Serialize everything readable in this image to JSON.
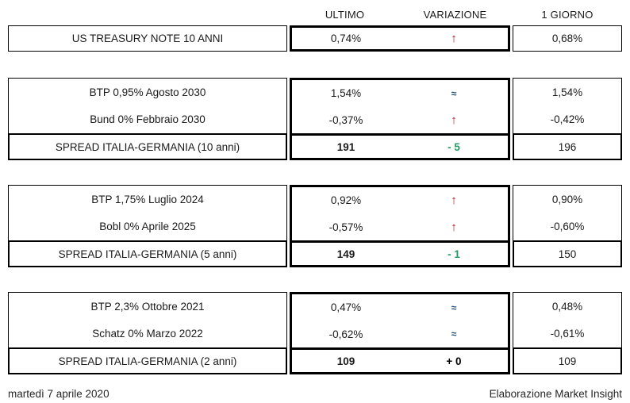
{
  "header": {
    "ultimo": "ULTIMO",
    "variazione": "VARIAZIONE",
    "giorno": "1 GIORNO"
  },
  "symbols": {
    "up_arrow": "↑",
    "approx_equal": "≈"
  },
  "colors": {
    "arrow_up_red": "#c00b1f",
    "approx_blue": "#1f4e79",
    "spread_down_green": "#1e9e62",
    "spread_zero_black": "#000000",
    "border_black": "#000000"
  },
  "sections": [
    {
      "rows": [
        {
          "label": "US TREASURY NOTE 10 ANNI",
          "ultimo": "0,74%",
          "variazione": "↑",
          "var_type": "up",
          "giorno": "0,68%"
        }
      ]
    },
    {
      "rows": [
        {
          "label": "BTP 0,95% Agosto 2030",
          "ultimo": "1,54%",
          "variazione": "≈",
          "var_type": "flat",
          "giorno": "1,54%"
        },
        {
          "label": "Bund 0% Febbraio 2030",
          "ultimo": "-0,37%",
          "variazione": "↑",
          "var_type": "up",
          "giorno": "-0,42%"
        }
      ],
      "spread": {
        "label": "SPREAD ITALIA-GERMANIA (10 anni)",
        "ultimo": "191",
        "variazione": "- 5",
        "var_type": "down",
        "giorno": "196"
      }
    },
    {
      "rows": [
        {
          "label": "BTP 1,75% Luglio 2024",
          "ultimo": "0,92%",
          "variazione": "↑",
          "var_type": "up",
          "giorno": "0,90%"
        },
        {
          "label": "Bobl 0% Aprile 2025",
          "ultimo": "-0,57%",
          "variazione": "↑",
          "var_type": "up",
          "giorno": "-0,60%"
        }
      ],
      "spread": {
        "label": "SPREAD ITALIA-GERMANIA (5 anni)",
        "ultimo": "149",
        "variazione": "- 1",
        "var_type": "down",
        "giorno": "150"
      }
    },
    {
      "rows": [
        {
          "label": "BTP 2,3% Ottobre 2021",
          "ultimo": "0,47%",
          "variazione": "≈",
          "var_type": "flat",
          "giorno": "0,48%"
        },
        {
          "label": "Schatz 0% Marzo 2022",
          "ultimo": "-0,62%",
          "variazione": "≈",
          "var_type": "flat",
          "giorno": "-0,61%"
        }
      ],
      "spread": {
        "label": "SPREAD ITALIA-GERMANIA (2 anni)",
        "ultimo": "109",
        "variazione": "+ 0",
        "var_type": "zero",
        "giorno": "109"
      }
    }
  ],
  "footer": {
    "date": "martedì 7 aprile 2020",
    "credit": "Elaborazione Market Insight"
  }
}
